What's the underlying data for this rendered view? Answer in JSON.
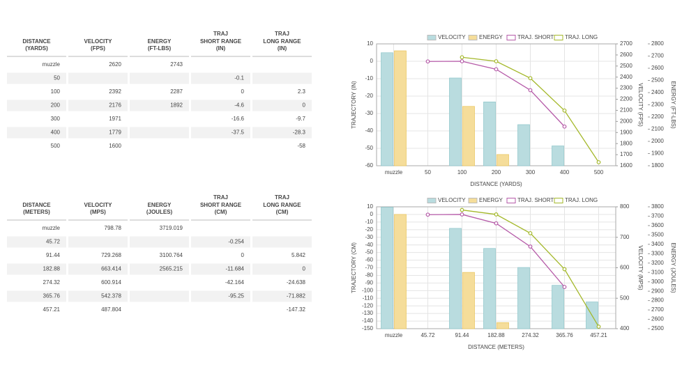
{
  "tables": [
    {
      "headers": [
        {
          "title": [
            "DISTANCE"
          ],
          "unit": "(YARDS)"
        },
        {
          "title": [
            "VELOCITY"
          ],
          "unit": "(FPS)"
        },
        {
          "title": [
            "ENERGY"
          ],
          "unit": "(FT-LBS)"
        },
        {
          "title": [
            "TRAJ",
            "SHORT RANGE"
          ],
          "unit": "(IN)"
        },
        {
          "title": [
            "TRAJ",
            "LONG RANGE"
          ],
          "unit": "(IN)"
        }
      ],
      "rows": [
        [
          "muzzle",
          2620,
          2743,
          null,
          null
        ],
        [
          50,
          null,
          null,
          -0.1,
          null
        ],
        [
          100,
          2392,
          2287,
          0,
          2.3
        ],
        [
          200,
          2176,
          1892,
          -4.6,
          0
        ],
        [
          300,
          1971,
          null,
          -16.6,
          -9.7
        ],
        [
          400,
          1779,
          null,
          -37.5,
          -28.3
        ],
        [
          500,
          1600,
          null,
          null,
          -58
        ]
      ]
    },
    {
      "headers": [
        {
          "title": [
            "DISTANCE"
          ],
          "unit": "(METERS)"
        },
        {
          "title": [
            "VELOCITY"
          ],
          "unit": "(MPS)"
        },
        {
          "title": [
            "ENERGY"
          ],
          "unit": "(JOULES)"
        },
        {
          "title": [
            "TRAJ",
            "SHORT RANGE"
          ],
          "unit": "(CM)"
        },
        {
          "title": [
            "TRAJ",
            "LONG RANGE"
          ],
          "unit": "(CM)"
        }
      ],
      "rows": [
        [
          "muzzle",
          798.78,
          3719.019,
          null,
          null
        ],
        [
          45.72,
          null,
          null,
          -0.254,
          null
        ],
        [
          91.44,
          729.268,
          3100.764,
          0,
          5.842
        ],
        [
          182.88,
          663.414,
          2565.215,
          -11.684,
          0
        ],
        [
          274.32,
          600.914,
          null,
          -42.164,
          -24.638
        ],
        [
          365.76,
          542.378,
          null,
          -95.25,
          -71.882
        ],
        [
          457.21,
          487.804,
          null,
          null,
          -147.32
        ]
      ]
    }
  ],
  "chart_data": [
    {
      "type": "combo",
      "x_label": "DISTANCE (YARDS)",
      "y_label": "TRAJECTORY (IN)",
      "y2_label": "VELOCITY (FPS)",
      "y3_label": "ENERGY (FT-LBS)",
      "grid": true,
      "categories": [
        "muzzle",
        "50",
        "100",
        "200",
        "300",
        "400",
        "500"
      ],
      "ylim": [
        -60,
        10
      ],
      "yticks": [
        -60,
        -50,
        -40,
        -30,
        -20,
        -10,
        0,
        10
      ],
      "y2lim": [
        1600,
        2700
      ],
      "y2ticks": [
        1600,
        1700,
        1800,
        1900,
        2000,
        2100,
        2200,
        2300,
        2400,
        2500,
        2600,
        2700
      ],
      "y3lim": [
        1800,
        2800
      ],
      "y3ticks": [
        1800,
        1900,
        2000,
        2100,
        2200,
        2300,
        2400,
        2500,
        2600,
        2700,
        2800
      ],
      "series": [
        {
          "name": "VELOCITY",
          "type": "bar",
          "axis": "y2",
          "color": "#b9dcdf",
          "values": [
            2620,
            null,
            2392,
            2176,
            1971,
            1779,
            1600
          ]
        },
        {
          "name": "ENERGY",
          "type": "bar",
          "axis": "y3",
          "color": "#f5dd9a",
          "values": [
            2743,
            null,
            2287,
            1892,
            null,
            null,
            null
          ]
        },
        {
          "name": "TRAJ. SHORT",
          "type": "line",
          "axis": "y",
          "color": "#b55aa8",
          "values": [
            null,
            -0.1,
            0,
            -4.6,
            -16.6,
            -37.5,
            null
          ]
        },
        {
          "name": "TRAJ. LONG",
          "type": "line",
          "axis": "y",
          "color": "#a4b82a",
          "values": [
            null,
            null,
            2.3,
            0,
            -9.7,
            -28.3,
            -58
          ]
        }
      ]
    },
    {
      "type": "combo",
      "x_label": "DISTANCE (METERS)",
      "y_label": "TRAJECTORY (CM)",
      "y2_label": "VELOCITY (MPS)",
      "y3_label": "ENERGY (JOULES)",
      "grid": true,
      "categories": [
        "muzzle",
        "45.72",
        "91.44",
        "182.88",
        "274.32",
        "365.76",
        "457.21"
      ],
      "ylim": [
        -150,
        10
      ],
      "yticks": [
        -150,
        -140,
        -130,
        -120,
        -110,
        -100,
        -90,
        -80,
        -70,
        -60,
        -50,
        -40,
        -30,
        -20,
        -10,
        0,
        10
      ],
      "y2lim": [
        400,
        800
      ],
      "y2ticks": [
        400,
        500,
        600,
        700,
        800
      ],
      "y3lim": [
        2500,
        3800
      ],
      "y3ticks": [
        2500,
        2600,
        2700,
        2800,
        2900,
        3000,
        3100,
        3200,
        3300,
        3400,
        3500,
        3600,
        3700,
        3800
      ],
      "series": [
        {
          "name": "VELOCITY",
          "type": "bar",
          "axis": "y2",
          "color": "#b9dcdf",
          "values": [
            798.78,
            null,
            729.268,
            663.414,
            600.914,
            542.378,
            487.804
          ]
        },
        {
          "name": "ENERGY",
          "type": "bar",
          "axis": "y3",
          "color": "#f5dd9a",
          "values": [
            3719.019,
            null,
            3100.764,
            2565.215,
            null,
            null,
            null
          ]
        },
        {
          "name": "TRAJ. SHORT",
          "type": "line",
          "axis": "y",
          "color": "#b55aa8",
          "values": [
            null,
            -0.254,
            0,
            -11.684,
            -42.164,
            -95.25,
            null
          ]
        },
        {
          "name": "TRAJ. LONG",
          "type": "line",
          "axis": "y",
          "color": "#a4b82a",
          "values": [
            null,
            null,
            5.842,
            0,
            -24.638,
            -71.882,
            -147.32
          ]
        }
      ]
    }
  ]
}
